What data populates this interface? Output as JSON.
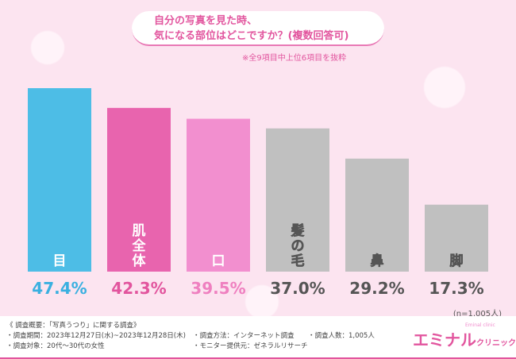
{
  "chart_data": {
    "type": "bar",
    "title": "自分の写真を見た時、\n気になる部位はどこですか？(複数回答可)",
    "title_line1": "自分の写真を見た時、",
    "title_line2": "気になる部位はどこですか？(複数回答可)",
    "subtitle": "※全9項目中上位6項目を抜粋",
    "categories": [
      "目",
      "肌全体",
      "口",
      "髪の毛",
      "鼻",
      "脚"
    ],
    "values": [
      47.4,
      42.3,
      39.5,
      37.0,
      29.2,
      17.3
    ],
    "value_labels": [
      "47.4%",
      "42.3%",
      "39.5%",
      "37.0%",
      "29.2%",
      "17.3%"
    ],
    "bar_colors": [
      "#4dbde6",
      "#e864ae",
      "#f28fcf",
      "#c0c0c0",
      "#c0c0c0",
      "#c0c0c0"
    ],
    "label_colors": [
      "#3ab0e0",
      "#e2559e",
      "#ef80c0",
      "#555555",
      "#555555",
      "#555555"
    ],
    "ylim": [
      0,
      50
    ],
    "grid": false,
    "sample_note": "(n=1,005人)"
  },
  "footer": {
    "summary": "《 調査概要：「写真うつり」に関する調査》",
    "period": "・調査期間：2023年12月27日(水)~2023年12月28日(木)",
    "target": "・調査対象：20代～30代の女性",
    "method": "・調査方法：インターネット調査",
    "provider": "・モニター提供元：ゼネラルリサーチ",
    "count": "・調査人数：1,005人"
  },
  "logo": {
    "main": "エミナル",
    "sub": "クリニック",
    "en": "Eminal clinic"
  }
}
